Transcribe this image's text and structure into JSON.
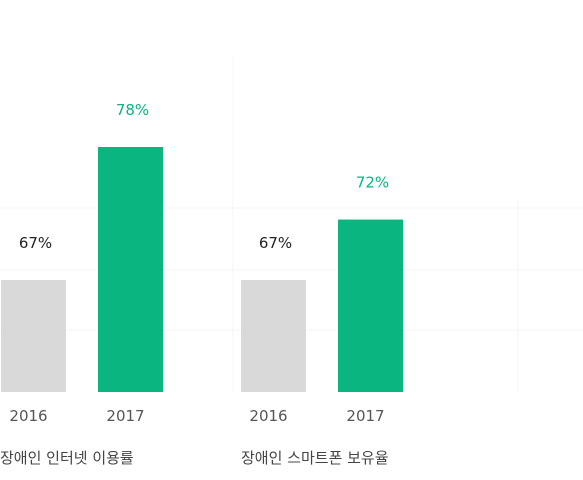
{
  "chart_data": {
    "type": "bar",
    "groups": [
      {
        "label": "장애인 인터넷 이용률",
        "categories": [
          "2016",
          "2017"
        ],
        "values": [
          67,
          78
        ],
        "value_labels": [
          "67%",
          "78%"
        ]
      },
      {
        "label": "장애인 스마트폰 보유율",
        "categories": [
          "2016",
          "2017"
        ],
        "values": [
          67,
          72
        ],
        "value_labels": [
          "67%",
          "72%"
        ]
      }
    ],
    "colors": {
      "prior": "#d9d9d9",
      "current": "#0bb57f",
      "current_label": "#0bb57f",
      "prior_label": "#222222"
    }
  }
}
